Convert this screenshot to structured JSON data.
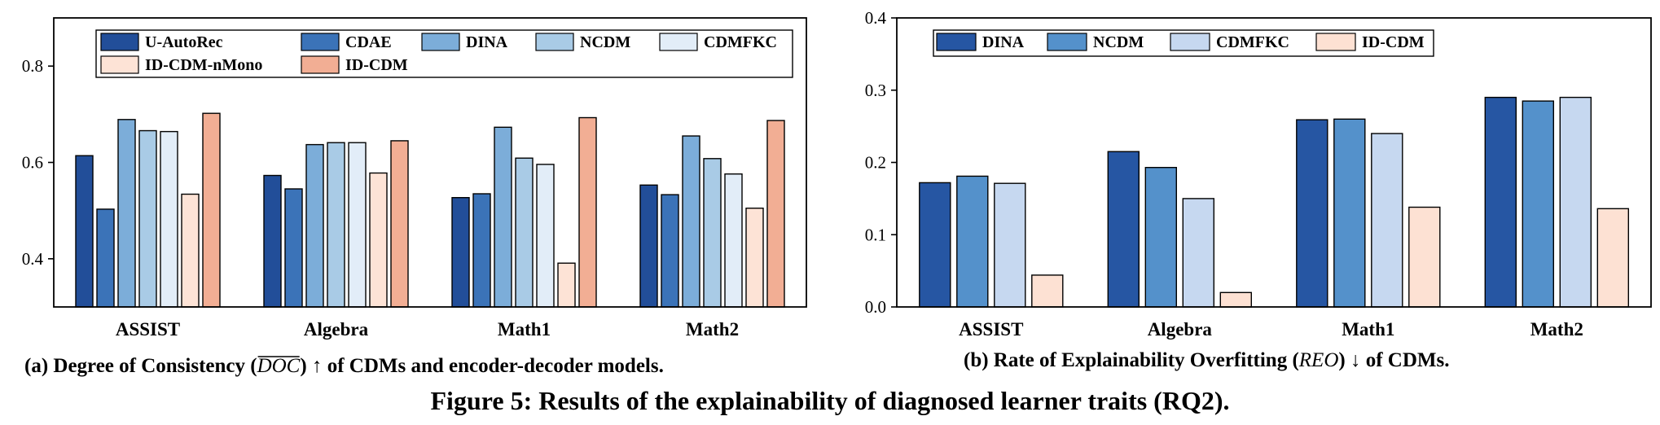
{
  "figure_title": "Figure 5: Results of the explainability of diagnosed learner traits (RQ2).",
  "colors": {
    "U-AutoRec": "#224E99",
    "CDAE": "#3B73B8",
    "DINA_a": "#7CADD9",
    "NCDM_a": "#A9CBE6",
    "CDMFKC": "#E2EDF8",
    "ID-CDM-nMono": "#FDE3D6",
    "ID-CDM_a": "#F2AE94",
    "DINA_b": "#2656A3",
    "NCDM_b": "#5491CB",
    "CDMFKC_b": "#C6D8F0",
    "ID-CDM_b": "#FDE1D3"
  },
  "chart_data": [
    {
      "type": "bar",
      "caption_prefix": "(a) Degree of Consistency (",
      "caption_metric": "DOC",
      "caption_suffix": ") ↑ of CDMs and encoder-decoder models.",
      "categories": [
        "ASSIST",
        "Algebra",
        "Math1",
        "Math2"
      ],
      "ylim": [
        0.3,
        0.9
      ],
      "yticks": [
        0.4,
        0.6,
        0.8
      ],
      "ytick_labels": [
        "0.4",
        "0.6",
        "0.8"
      ],
      "legend_position": "top",
      "series": [
        {
          "name": "U-AutoRec",
          "color_key": "U-AutoRec",
          "values": [
            0.614,
            0.573,
            0.527,
            0.553
          ]
        },
        {
          "name": "CDAE",
          "color_key": "CDAE",
          "values": [
            0.503,
            0.545,
            0.535,
            0.533
          ]
        },
        {
          "name": "DINA",
          "color_key": "DINA_a",
          "values": [
            0.689,
            0.637,
            0.673,
            0.655
          ]
        },
        {
          "name": "NCDM",
          "color_key": "NCDM_a",
          "values": [
            0.666,
            0.641,
            0.609,
            0.608
          ]
        },
        {
          "name": "CDMFKC",
          "color_key": "CDMFKC",
          "values": [
            0.664,
            0.641,
            0.596,
            0.576
          ]
        },
        {
          "name": "ID-CDM-nMono",
          "color_key": "ID-CDM-nMono",
          "values": [
            0.534,
            0.578,
            0.391,
            0.505
          ]
        },
        {
          "name": "ID-CDM",
          "color_key": "ID-CDM_a",
          "values": [
            0.702,
            0.645,
            0.693,
            0.687
          ]
        }
      ]
    },
    {
      "type": "bar",
      "caption_prefix": "(b) Rate of Explainability Overfitting (",
      "caption_metric": "REO",
      "caption_suffix": ") ↓ of CDMs.",
      "categories": [
        "ASSIST",
        "Algebra",
        "Math1",
        "Math2"
      ],
      "ylim": [
        0.0,
        0.4
      ],
      "yticks": [
        0.0,
        0.1,
        0.2,
        0.3,
        0.4
      ],
      "ytick_labels": [
        "0.0",
        "0.1",
        "0.2",
        "0.3",
        "0.4"
      ],
      "legend_position": "top-left",
      "series": [
        {
          "name": "DINA",
          "color_key": "DINA_b",
          "values": [
            0.172,
            0.215,
            0.259,
            0.29
          ]
        },
        {
          "name": "NCDM",
          "color_key": "NCDM_b",
          "values": [
            0.181,
            0.193,
            0.26,
            0.285
          ]
        },
        {
          "name": "CDMFKC",
          "color_key": "CDMFKC_b",
          "values": [
            0.171,
            0.15,
            0.24,
            0.29
          ]
        },
        {
          "name": "ID-CDM",
          "color_key": "ID-CDM_b",
          "values": [
            0.044,
            0.02,
            0.138,
            0.136
          ]
        }
      ]
    }
  ]
}
